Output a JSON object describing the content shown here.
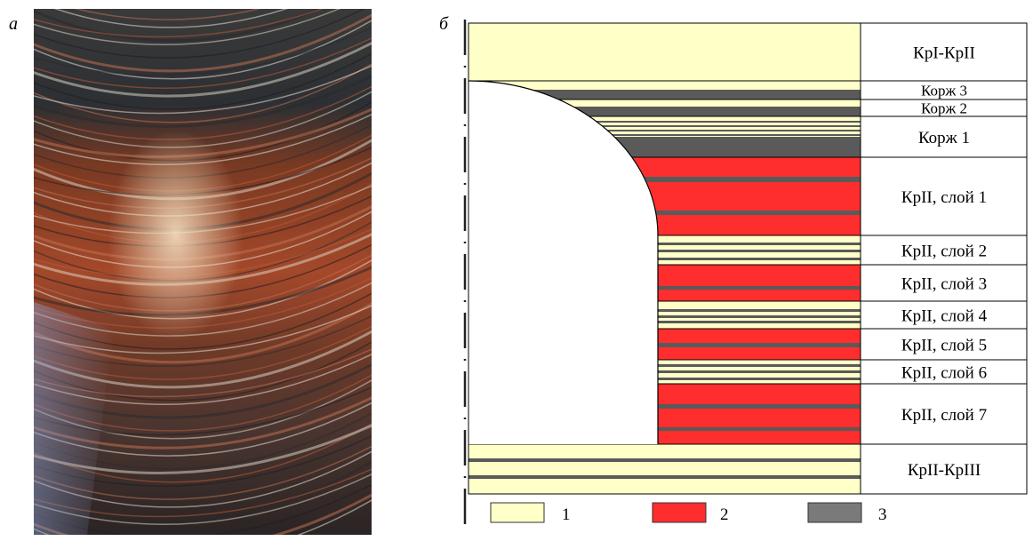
{
  "panels": {
    "a": "а",
    "b": "б"
  },
  "colors": {
    "halite_light": "#FFFFC8",
    "sylvinite_red": "#FF2E2E",
    "clay_gray": "#5A5A5A",
    "legend_gray": "#7A7A7A"
  },
  "layers": [
    {
      "label": "КрI-КрII"
    },
    {
      "label": "Корж 3"
    },
    {
      "label": "Корж 2"
    },
    {
      "label": "Корж 1"
    },
    {
      "label": "КрII, слой 1"
    },
    {
      "label": "КрII, слой 2"
    },
    {
      "label": "КрII, слой 3"
    },
    {
      "label": "КрII, слой 4"
    },
    {
      "label": "КрII, слой 5"
    },
    {
      "label": "КрII, слой 6"
    },
    {
      "label": "КрII, слой 7"
    },
    {
      "label": "КрII-КрIII"
    }
  ],
  "legend": [
    {
      "label": "1",
      "color": "#FFFFC8"
    },
    {
      "label": "2",
      "color": "#FF2E2E"
    },
    {
      "label": "3",
      "color": "#7A7A7A"
    }
  ]
}
